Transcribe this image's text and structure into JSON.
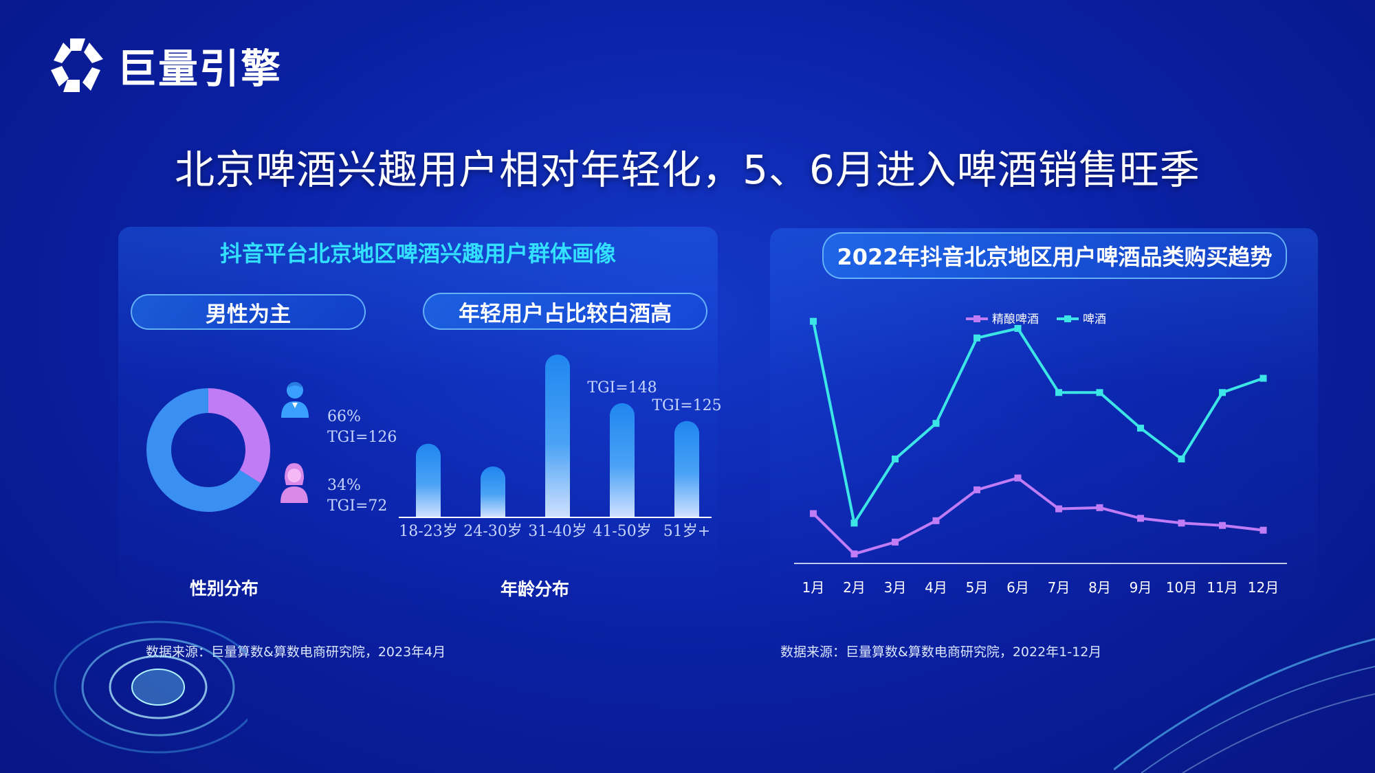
{
  "brand": {
    "name": "巨量引擎"
  },
  "title": "北京啤酒兴趣用户相对年轻化，5、6月进入啤酒销售旺季",
  "left_panel": {
    "title": "抖音平台北京地区啤酒兴趣用户群体画像",
    "pill_gender": "男性为主",
    "pill_age": "年轻用户占比较白酒高",
    "gender_caption": "性别分布",
    "age_caption": "年龄分布",
    "male": {
      "pct": "66%",
      "tgi": "TGI=126"
    },
    "female": {
      "pct": "34%",
      "tgi": "TGI=72"
    },
    "source": "数据来源：巨量算数&算数电商研究院，2023年4月"
  },
  "right_panel": {
    "title": "2022年抖音北京地区用户啤酒品类购买趋势",
    "source": "数据来源：巨量算数&算数电商研究院，2022年1-12月"
  },
  "colors": {
    "accent": "#33e0ff",
    "purple": "#c07cf5",
    "cyan": "#3de6e6",
    "blue": "#2e8cf0"
  },
  "chart_data": [
    {
      "type": "pie",
      "title": "性别分布",
      "categories": [
        "男",
        "女"
      ],
      "values": [
        66,
        34
      ],
      "colors": [
        "#3a8ff2",
        "#c07cf5"
      ]
    },
    {
      "type": "bar",
      "title": "年龄分布",
      "categories": [
        "18-23岁",
        "24-30岁",
        "31-40岁",
        "41-50岁",
        "51岁+"
      ],
      "values": [
        0.45,
        0.31,
        1.0,
        0.7,
        0.59
      ],
      "annotations": [
        {
          "category": "41-50岁",
          "text": "TGI=148"
        },
        {
          "category": "51岁+",
          "text": "TGI=125"
        }
      ]
    },
    {
      "type": "line",
      "title": "2022年抖音北京地区用户啤酒品类购买趋势",
      "categories": [
        "1月",
        "2月",
        "3月",
        "4月",
        "5月",
        "6月",
        "7月",
        "8月",
        "9月",
        "10月",
        "11月",
        "12月"
      ],
      "series": [
        {
          "name": "精酿啤酒",
          "color": "#c07cf5",
          "values": [
            21,
            4,
            9,
            18,
            31,
            36,
            23,
            23.5,
            19,
            17,
            16,
            14
          ]
        },
        {
          "name": "啤酒",
          "color": "#3de6e6",
          "values": [
            102,
            17,
            44,
            59,
            95,
            99,
            72,
            72,
            57,
            44,
            72,
            78
          ]
        }
      ],
      "ylim": [
        0,
        110
      ],
      "legend": "top",
      "grid": false
    }
  ]
}
